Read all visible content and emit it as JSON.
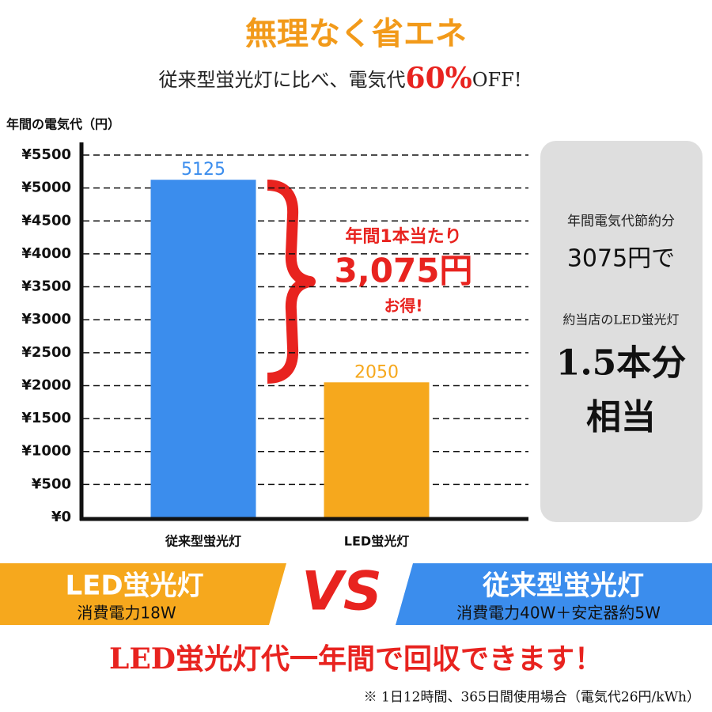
{
  "chart_data": {
    "type": "bar",
    "title": "無理なく省エネ",
    "subtitle": [
      "従来型蛍光灯に比べ、電気代",
      "60%",
      "OFF!"
    ],
    "y_label": "年間の電気代（円）",
    "categories": [
      "従来型蛍光灯",
      "LED蛍光灯"
    ],
    "values": [
      5125,
      2050
    ],
    "colors": [
      "#3b8ded",
      "#f6a81d"
    ],
    "ylim": [
      0,
      5500
    ],
    "yticks": [
      {
        "value": 0,
        "label": "¥0"
      },
      {
        "value": 500,
        "label": "¥500"
      },
      {
        "value": 1000,
        "label": "¥1000"
      },
      {
        "value": 1500,
        "label": "¥1500"
      },
      {
        "value": 2000,
        "label": "¥2000"
      },
      {
        "value": 2500,
        "label": "¥2500"
      },
      {
        "value": 3000,
        "label": "¥3000"
      },
      {
        "value": 3500,
        "label": "¥3500"
      },
      {
        "value": 4000,
        "label": "¥4000"
      },
      {
        "value": 4500,
        "label": "¥4500"
      },
      {
        "value": 5000,
        "label": "¥5000"
      },
      {
        "value": 5500,
        "label": "¥5500"
      }
    ],
    "grid": true
  },
  "annotation": [
    "年間1本当たり",
    "3,075円",
    "お得!"
  ],
  "side_panel": [
    "年間電気代節約分",
    "3075円で",
    "約当店のLED蛍光灯",
    "1.5本分",
    "相当"
  ],
  "banner": {
    "left_title": "LED蛍光灯",
    "left_sub": "消費電力18W",
    "vs": "VS",
    "right_title": "従来型蛍光灯",
    "right_sub": "消費電力40W＋安定器約5W"
  },
  "footer": {
    "headline": "LED蛍光灯代一年間で回収できます！",
    "note": "※ 1日12時間、365日間使用場合（電気代26円/kWh）"
  }
}
